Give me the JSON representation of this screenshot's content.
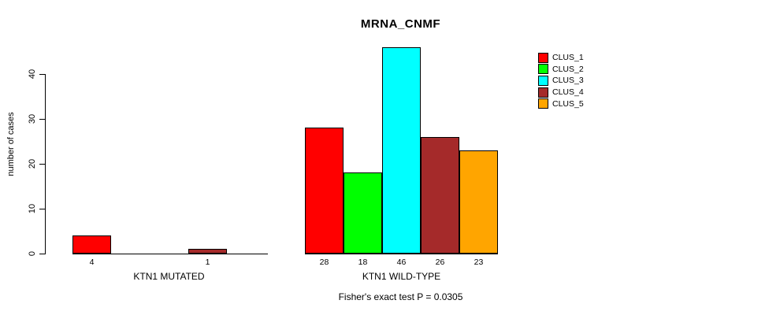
{
  "title": "MRNA_CNMF",
  "footer": "Fisher's exact test P = 0.0305",
  "y_axis": {
    "label": "number of cases",
    "tick_values": [
      0,
      10,
      20,
      30,
      40
    ]
  },
  "legend": {
    "items": [
      {
        "label": "CLUS_1",
        "color": "#ff0000"
      },
      {
        "label": "CLUS_2",
        "color": "#00ff00"
      },
      {
        "label": "CLUS_3",
        "color": "#00ffff"
      },
      {
        "label": "CLUS_4",
        "color": "#a52a2a"
      },
      {
        "label": "CLUS_5",
        "color": "#ffa500"
      }
    ]
  },
  "chart_data": {
    "type": "bar",
    "title": "MRNA_CNMF",
    "xlabel": "",
    "ylabel": "number of cases",
    "ylim": [
      0,
      40
    ],
    "grid": false,
    "legend_position": "top-right",
    "categories": [
      "CLUS_1",
      "CLUS_2",
      "CLUS_3",
      "CLUS_4",
      "CLUS_5"
    ],
    "series_colors": [
      "#ff0000",
      "#00ff00",
      "#00ffff",
      "#a52a2a",
      "#ffa500"
    ],
    "groups": [
      {
        "label": "KTN1 MUTATED",
        "values": [
          4,
          0,
          0,
          1,
          0
        ]
      },
      {
        "label": "KTN1 WILD-TYPE",
        "values": [
          28,
          18,
          46,
          26,
          23
        ]
      }
    ],
    "annotation": "Fisher's exact test P = 0.0305"
  }
}
